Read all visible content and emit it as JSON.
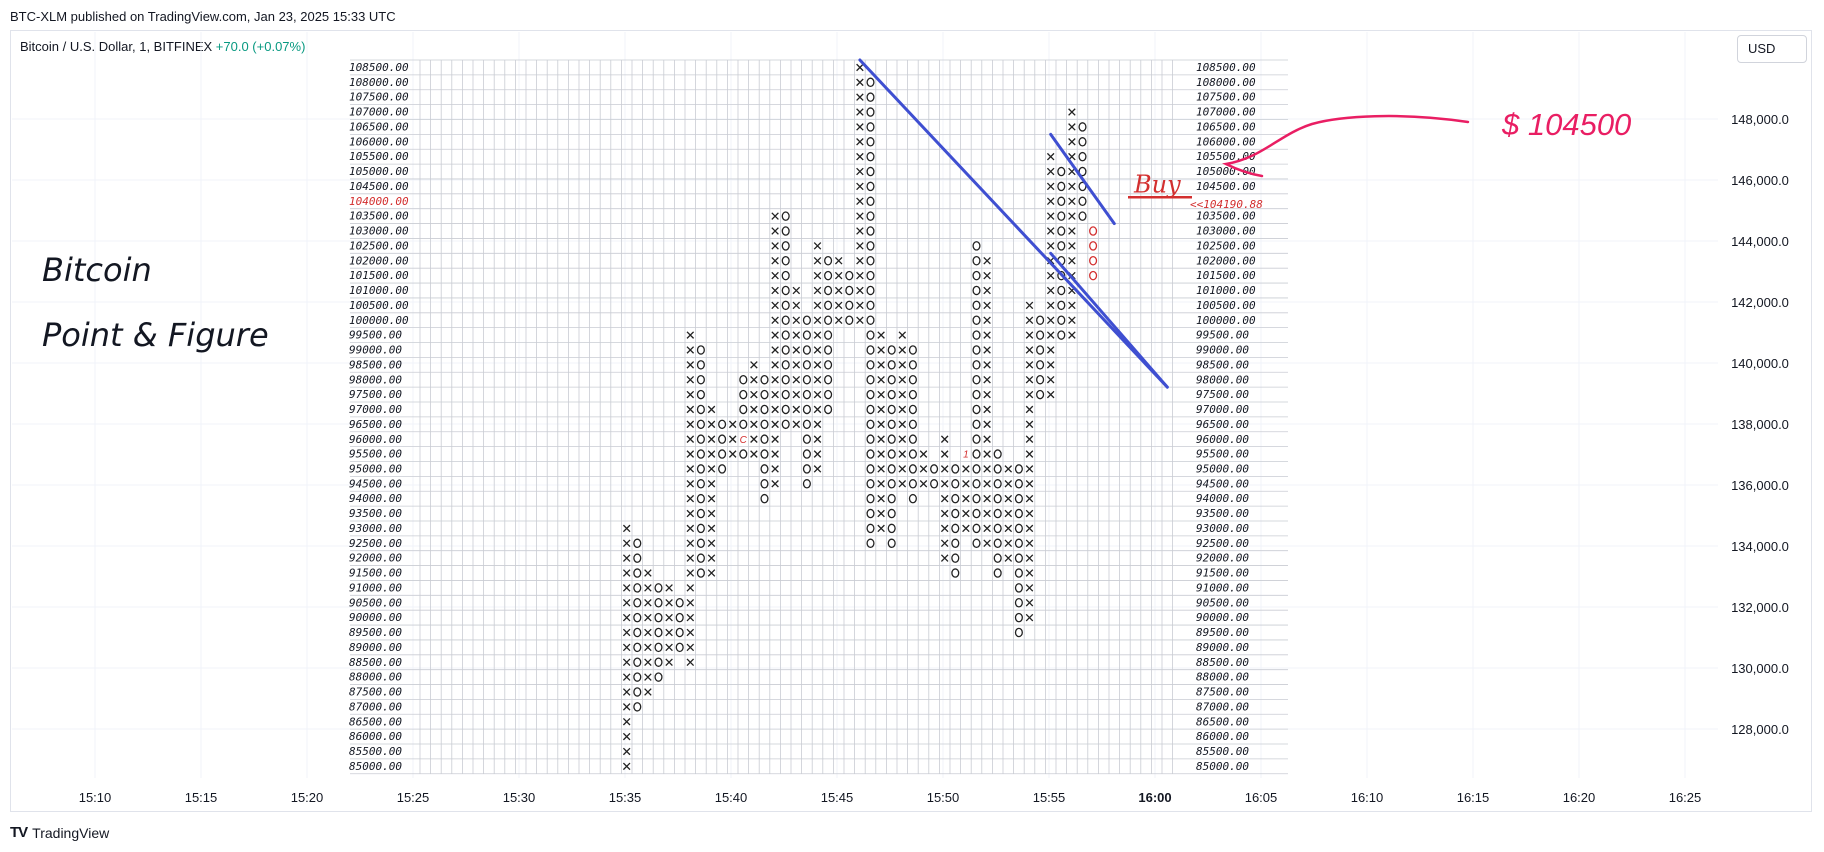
{
  "header": {
    "published": "BTC-XLM published on TradingView.com, Jan 23, 2025 15:33 UTC",
    "symbol": "Bitcoin / U.S. Dollar, 1, BITFINEX",
    "change": "+70.0 (+0.07%)",
    "currency_button": "USD"
  },
  "footer": {
    "brand": "TradingView",
    "logo": "TV"
  },
  "colors": {
    "grid": "#f0f3fa",
    "axis_text": "#131722",
    "trendline": "#3f4fd1",
    "annotation": "#e91e63",
    "buy": "#d32f2f"
  },
  "annotations": {
    "title_line1": "Bitcoin",
    "title_line2": "Point & Figure",
    "buy_label": "Buy",
    "price_callout": "$ 104500",
    "current_price_label": "<<104190.88"
  },
  "chart_data": {
    "type": "point_and_figure",
    "box_size": 500,
    "price_low": 85000,
    "price_high": 108500,
    "highlight_price": "104000.00",
    "box_row_labels": [
      "108500.00",
      "108000.00",
      "107500.00",
      "107000.00",
      "106500.00",
      "106000.00",
      "105500.00",
      "105000.00",
      "104500.00",
      "104000.00",
      "103500.00",
      "103000.00",
      "102500.00",
      "102000.00",
      "101500.00",
      "101000.00",
      "100500.00",
      "100000.00",
      "99500.00",
      "99000.00",
      "98500.00",
      "98000.00",
      "97500.00",
      "97000.00",
      "96500.00",
      "96000.00",
      "95500.00",
      "95000.00",
      "94500.00",
      "94000.00",
      "93500.00",
      "93000.00",
      "92500.00",
      "92000.00",
      "91500.00",
      "91000.00",
      "90500.00",
      "90000.00",
      "89500.00",
      "89000.00",
      "88500.00",
      "88000.00",
      "87500.00",
      "87000.00",
      "86500.00",
      "86000.00",
      "85500.00",
      "85000.00"
    ],
    "columns": [
      {
        "col": 19,
        "type": "X",
        "low": 85000,
        "high": 93000
      },
      {
        "col": 20,
        "type": "O",
        "low": 87000,
        "high": 92500
      },
      {
        "col": 21,
        "type": "X",
        "low": 87500,
        "high": 91500
      },
      {
        "col": 22,
        "type": "O",
        "low": 88000,
        "high": 91000
      },
      {
        "col": 23,
        "type": "X",
        "low": 88500,
        "high": 91000
      },
      {
        "col": 24,
        "type": "O",
        "low": 89000,
        "high": 90500
      },
      {
        "col": 25,
        "type": "X",
        "low": 88500,
        "high": 99500
      },
      {
        "col": 26,
        "type": "O",
        "low": 91500,
        "high": 99000
      },
      {
        "col": 27,
        "type": "X",
        "low": 91500,
        "high": 97000
      },
      {
        "col": 28,
        "type": "O",
        "low": 95000,
        "high": 96500
      },
      {
        "col": 29,
        "type": "X",
        "low": 95500,
        "high": 96500
      },
      {
        "col": 30,
        "type": "O",
        "low": 95500,
        "high": 98000
      },
      {
        "col": 31,
        "type": "X",
        "low": 95500,
        "high": 98500
      },
      {
        "col": 32,
        "type": "O",
        "low": 94000,
        "high": 98000
      },
      {
        "col": 33,
        "type": "X",
        "low": 94500,
        "high": 103500
      },
      {
        "col": 34,
        "type": "O",
        "low": 96500,
        "high": 103500
      },
      {
        "col": 35,
        "type": "X",
        "low": 96500,
        "high": 101000
      },
      {
        "col": 36,
        "type": "O",
        "low": 94500,
        "high": 100000
      },
      {
        "col": 37,
        "type": "X",
        "low": 95000,
        "high": 102500
      },
      {
        "col": 38,
        "type": "O",
        "low": 97000,
        "high": 102000
      },
      {
        "col": 39,
        "type": "X",
        "low": 100000,
        "high": 102000
      },
      {
        "col": 40,
        "type": "O",
        "low": 100000,
        "high": 101500
      },
      {
        "col": 41,
        "type": "X",
        "low": 100000,
        "high": 108500
      },
      {
        "col": 42,
        "type": "O",
        "low": 92500,
        "high": 108000
      },
      {
        "col": 43,
        "type": "X",
        "low": 93000,
        "high": 99500
      },
      {
        "col": 44,
        "type": "O",
        "low": 92500,
        "high": 99000
      },
      {
        "col": 45,
        "type": "X",
        "low": 94500,
        "high": 99500
      },
      {
        "col": 46,
        "type": "O",
        "low": 94000,
        "high": 99000
      },
      {
        "col": 47,
        "type": "X",
        "low": 94500,
        "high": 95500
      },
      {
        "col": 48,
        "type": "O",
        "low": 94500,
        "high": 95000
      },
      {
        "col": 49,
        "type": "X",
        "low": 92000,
        "high": 96000
      },
      {
        "col": 50,
        "type": "O",
        "low": 91500,
        "high": 95000
      },
      {
        "col": 51,
        "type": "X",
        "low": 93000,
        "high": 95500
      },
      {
        "col": 52,
        "type": "O",
        "low": 92500,
        "high": 102500
      },
      {
        "col": 53,
        "type": "X",
        "low": 92500,
        "high": 102000
      },
      {
        "col": 54,
        "type": "O",
        "low": 91500,
        "high": 95500
      },
      {
        "col": 55,
        "type": "X",
        "low": 92000,
        "high": 95000
      },
      {
        "col": 56,
        "type": "O",
        "low": 89500,
        "high": 95000
      },
      {
        "col": 57,
        "type": "X",
        "low": 90000,
        "high": 100500
      },
      {
        "col": 58,
        "type": "O",
        "low": 97500,
        "high": 100000
      },
      {
        "col": 59,
        "type": "X",
        "low": 97500,
        "high": 105500
      },
      {
        "col": 60,
        "type": "O",
        "low": 99500,
        "high": 105000
      },
      {
        "col": 61,
        "type": "X",
        "low": 99500,
        "high": 107000
      },
      {
        "col": 62,
        "type": "O",
        "low": 103500,
        "high": 106500
      },
      {
        "col": 63,
        "type": "O",
        "low": 101500,
        "high": 103000,
        "color": "red"
      }
    ],
    "markers": [
      {
        "col": 30,
        "price": 96000,
        "text": "C"
      },
      {
        "col": 51,
        "price": 95500,
        "text": "1"
      }
    ],
    "trendlines": [
      {
        "from": {
          "col": 41,
          "price": 108750
        },
        "to": {
          "col": 70,
          "price": 97750
        }
      },
      {
        "from": {
          "col": 59,
          "price": 106250
        },
        "to": {
          "col": 65,
          "price": 103250
        }
      },
      {
        "from": {
          "col": 59,
          "price": 102250
        },
        "to": {
          "col": 70,
          "price": 97750
        }
      }
    ],
    "time_axis": [
      "15:10",
      "15:15",
      "15:20",
      "15:25",
      "15:30",
      "15:35",
      "15:40",
      "15:45",
      "15:50",
      "15:55",
      "16:00",
      "16:05",
      "16:10",
      "16:15",
      "16:20",
      "16:25"
    ],
    "time_axis_bold": "16:00",
    "price_axis": [
      "148,000.0",
      "146,000.0",
      "144,000.0",
      "142,000.0",
      "140,000.0",
      "138,000.0",
      "136,000.0",
      "134,000.0",
      "132,000.0",
      "130,000.0",
      "128,000.0"
    ]
  }
}
